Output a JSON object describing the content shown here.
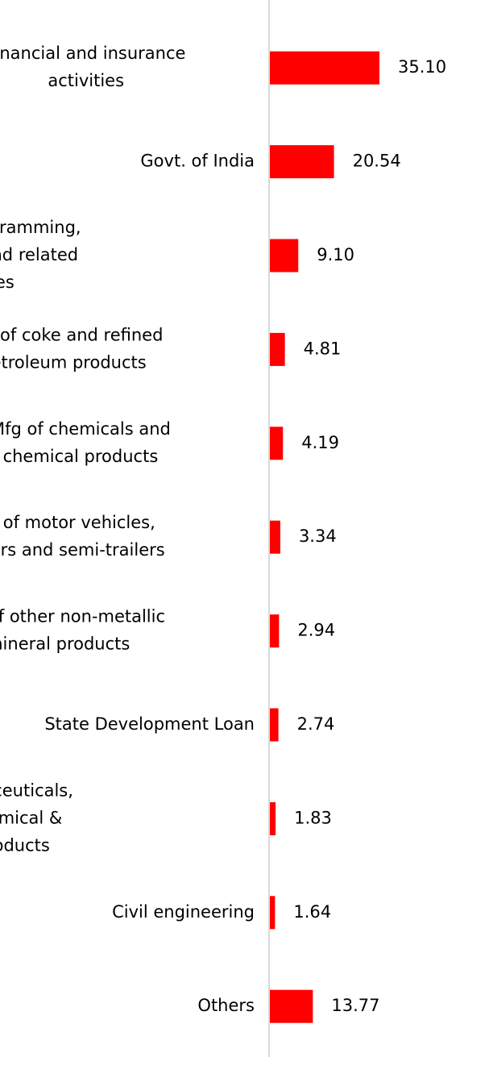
{
  "chart_data": {
    "type": "bar",
    "orientation": "horizontal",
    "categories": [
      "Financial and insurance activities",
      "Govt. of India",
      "Computer programming, consultancy and related activities",
      "Mfg of coke and refined petroleum products",
      "Mfg of chemicals and chemical products",
      "Mfg of motor vehicles, trailers and semi-trailers",
      "Mfg of other non-metallic mineral products",
      "State Development Loan",
      "Mfg of pharmaceuticals, medicinal chemical & botanical products",
      "Civil engineering",
      "Others"
    ],
    "category_label_lines": [
      [
        "Financial and insurance",
        "activities"
      ],
      [
        "Govt. of India"
      ],
      [
        "Computer programming,",
        "consultancy and related",
        "activities"
      ],
      [
        "Mfg of coke and refined",
        "petroleum products"
      ],
      [
        "Mfg of chemicals and",
        "chemical products"
      ],
      [
        "Mfg of motor vehicles,",
        "trailers and semi-trailers"
      ],
      [
        "Mfg of other non-metallic",
        "mineral products"
      ],
      [
        "State Development Loan"
      ],
      [
        "Mfg of pharmaceuticals,",
        "medicinal chemical &",
        "botanical products"
      ],
      [
        "Civil engineering"
      ],
      [
        "Others"
      ]
    ],
    "values": [
      35.1,
      20.54,
      9.1,
      4.81,
      4.19,
      3.34,
      2.94,
      2.74,
      1.83,
      1.64,
      13.77
    ],
    "value_labels": [
      "35.10",
      "20.54",
      "9.10",
      "4.81",
      "4.19",
      "3.34",
      "2.94",
      "2.74",
      "1.83",
      "1.64",
      "13.77"
    ],
    "xlim": [
      0,
      35.1
    ],
    "title": "",
    "xlabel": "",
    "ylabel": "",
    "grid": false,
    "legend": "none",
    "bar_color": "#ff0000",
    "axis_color": "#d9d9d9",
    "text_color": "#000000"
  }
}
